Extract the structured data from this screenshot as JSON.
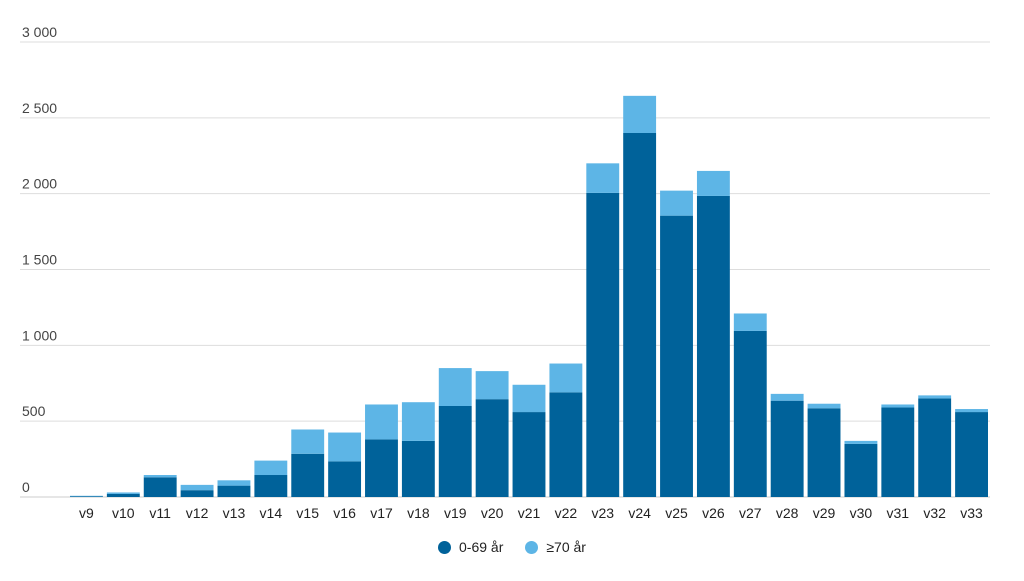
{
  "chart_data": {
    "type": "bar",
    "stacked": true,
    "categories": [
      "v9",
      "v10",
      "v11",
      "v12",
      "v13",
      "v14",
      "v15",
      "v16",
      "v17",
      "v18",
      "v19",
      "v20",
      "v21",
      "v22",
      "v23",
      "v24",
      "v25",
      "v26",
      "v27",
      "v28",
      "v29",
      "v30",
      "v31",
      "v32",
      "v33"
    ],
    "series": [
      {
        "name": "0-69 år",
        "color": "#00629a",
        "values": [
          5,
          20,
          130,
          45,
          75,
          145,
          285,
          235,
          380,
          370,
          600,
          645,
          560,
          690,
          2005,
          2400,
          1855,
          1985,
          1095,
          635,
          585,
          350,
          590,
          650,
          560
        ]
      },
      {
        "name": "≥70 år",
        "color": "#5db5e6",
        "values": [
          3,
          10,
          15,
          35,
          35,
          95,
          160,
          190,
          230,
          255,
          250,
          185,
          180,
          190,
          195,
          245,
          165,
          165,
          115,
          45,
          30,
          20,
          20,
          20,
          20
        ]
      }
    ],
    "y_ticks": [
      "0",
      "500",
      "1 000",
      "1 500",
      "2 000",
      "2 500",
      "3 000"
    ],
    "y_tick_values": [
      0,
      500,
      1000,
      1500,
      2000,
      2500,
      3000
    ],
    "ylim": [
      0,
      3000
    ],
    "title": "",
    "xlabel": "",
    "ylabel": "",
    "grid": true,
    "legend_position": "bottom-center"
  }
}
